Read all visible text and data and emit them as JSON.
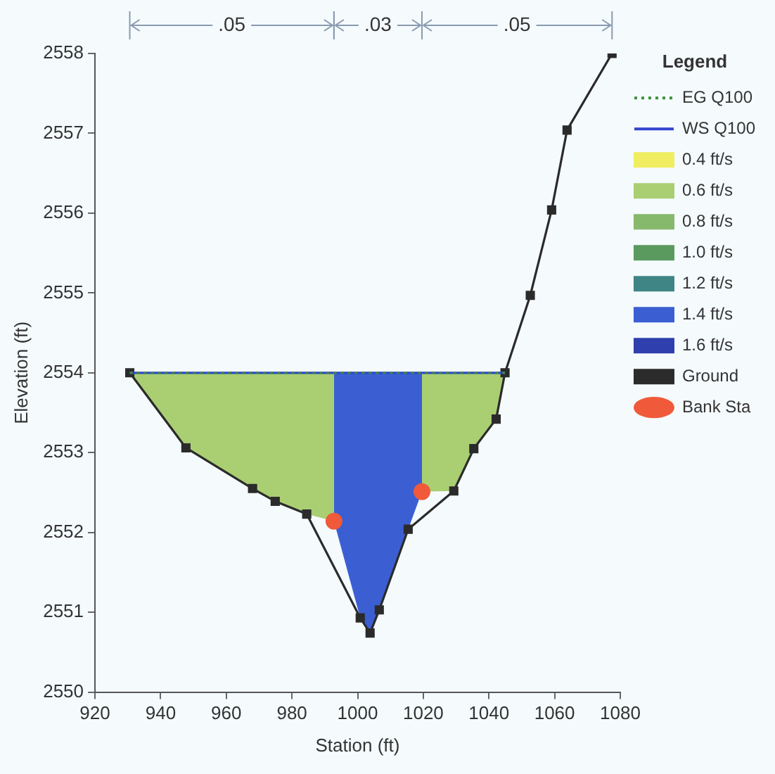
{
  "chart_data": {
    "type": "line",
    "xlabel": "Station (ft)",
    "ylabel": "Elevation (ft)",
    "legend_title": "Legend",
    "legend": "right",
    "grid": false,
    "xlim": [
      920,
      1080
    ],
    "xticks": [
      920,
      940,
      960,
      980,
      1000,
      1020,
      1040,
      1060,
      1080
    ],
    "ylim": [
      2550,
      2558
    ],
    "yticks": [
      2550,
      2551,
      2552,
      2553,
      2554,
      2555,
      2556,
      2557,
      2558
    ],
    "annotations": [
      ".05",
      ".03",
      ".05"
    ],
    "series": [
      {
        "name": "EG Q100",
        "type": "line",
        "color": "#3d8f3d",
        "line_style": "dotted",
        "marker": "none",
        "x": [
          930.6,
          1044.9
        ],
        "values": [
          2554.0,
          2554.0
        ]
      },
      {
        "name": "WS Q100",
        "type": "line",
        "color": "#3344cc",
        "line_style": "solid",
        "marker": "none",
        "x": [
          930.6,
          1044.9
        ],
        "values": [
          2554.0,
          2554.0
        ]
      },
      {
        "name": "0.4 ft/s",
        "type": "area",
        "color": "#f0ee60"
      },
      {
        "name": "0.6 ft/s",
        "type": "area",
        "color": "#a9cf72",
        "x": [
          930.6,
          947.7,
          968.0,
          974.9,
          984.5,
          992.8,
          992.8
        ],
        "values": [
          2554.0,
          2553.06,
          2552.55,
          2552.39,
          2552.23,
          2552.14,
          2554.0
        ]
      },
      {
        "name": "0.8 ft/s",
        "type": "area",
        "color": "#86b96c"
      },
      {
        "name": "1.0 ft/s",
        "type": "area",
        "color": "#5a9a5e"
      },
      {
        "name": "1.2 ft/s",
        "type": "area",
        "color": "#3f8585"
      },
      {
        "name": "1.4 ft/s",
        "type": "area",
        "color": "#3b5fd3",
        "x": [
          992.8,
          1000.8,
          1003.8,
          1006.6,
          1015.4,
          1019.6,
          1019.6,
          992.8
        ],
        "values": [
          2552.14,
          2550.93,
          2550.74,
          2551.03,
          2552.04,
          2552.51,
          2554.0,
          2554.0
        ]
      },
      {
        "name": "1.6 ft/s",
        "type": "area",
        "color": "#2f3fae"
      },
      {
        "type": "area",
        "color": "#a9cf72",
        "x": [
          1019.6,
          1029.3,
          1035.4,
          1042.2,
          1044.9,
          1019.6
        ],
        "values": [
          2552.51,
          2552.52,
          2553.05,
          2553.42,
          2554.0,
          2554.0
        ]
      },
      {
        "name": "Ground",
        "color": "#2b2b2b",
        "marker": "square",
        "line_style": "solid",
        "x": [
          930.6,
          947.7,
          968.0,
          974.9,
          984.5,
          1000.8,
          1003.8,
          1006.6,
          1015.4,
          1029.3,
          1035.4,
          1042.2,
          1044.9,
          1052.6,
          1059.1,
          1063.8,
          1077.5
        ],
        "values": [
          2554.0,
          2553.06,
          2552.55,
          2552.39,
          2552.23,
          2550.93,
          2550.74,
          2551.03,
          2552.04,
          2552.52,
          2553.05,
          2553.42,
          2554.0,
          2554.97,
          2556.04,
          2557.04,
          2558.0
        ]
      },
      {
        "name": "Bank Sta",
        "type": "scatter",
        "color": "#f05a3a",
        "marker": "circle",
        "x": [
          992.8,
          1019.6
        ],
        "values": [
          2552.14,
          2552.51
        ]
      }
    ]
  }
}
